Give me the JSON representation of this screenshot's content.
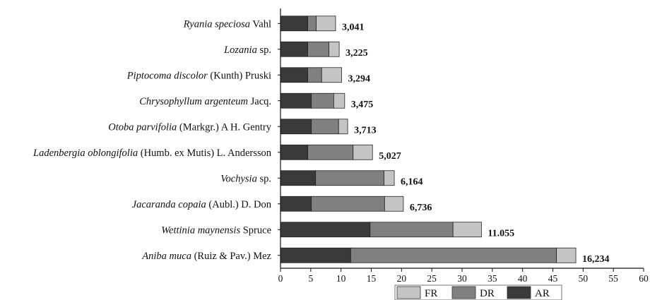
{
  "chart_data": {
    "type": "bar",
    "orientation": "horizontal",
    "stacked": true,
    "categories": [
      {
        "italic": "Ryania speciosa",
        "rest": " Vahl"
      },
      {
        "italic": "Lozania",
        "rest": " sp."
      },
      {
        "italic": "Piptocoma discolor",
        "rest": " (Kunth) Pruski"
      },
      {
        "italic": "Chrysophyllum argenteum",
        "rest": " Jacq."
      },
      {
        "italic": "Otoba parvifolia",
        "rest": " (Markgr.) A H. Gentry"
      },
      {
        "italic": "Ladenbergia oblongifolia",
        "rest": " (Humb. ex Mutis) L. Andersson"
      },
      {
        "italic": "Vochysia",
        "rest": " sp."
      },
      {
        "italic": "Jacaranda copaia",
        "rest": " (Aubl.) D. Don"
      },
      {
        "italic": "Wettinia maynensis",
        "rest": " Spruce"
      },
      {
        "italic": "Aniba muca",
        "rest": " (Ruiz & Pav.) Mez"
      }
    ],
    "series": [
      {
        "name": "AR",
        "color": "#3a3a3a",
        "values": [
          4.5,
          4.5,
          4.5,
          5.1,
          5.1,
          4.5,
          5.8,
          5.1,
          14.8,
          11.6
        ]
      },
      {
        "name": "DR",
        "color": "#808080",
        "values": [
          1.4,
          3.5,
          2.3,
          3.7,
          4.5,
          7.5,
          11.3,
          12.1,
          13.7,
          34.0
        ]
      },
      {
        "name": "FR",
        "color": "#c4c4c4",
        "values": [
          3.2,
          1.7,
          3.3,
          1.8,
          1.5,
          3.2,
          1.7,
          3.1,
          4.7,
          3.2
        ]
      }
    ],
    "data_labels": [
      "3,041",
      "3,225",
      "3,294",
      "3,475",
      "3,713",
      "5,027",
      "6,164",
      "6,736",
      "11.055",
      "16,234"
    ],
    "xlim": [
      0,
      60
    ],
    "xticks": [
      "0",
      "5",
      "10",
      "15",
      "20",
      "25",
      "30",
      "35",
      "40",
      "45",
      "50",
      "55",
      "60"
    ],
    "grid": false,
    "legend": {
      "position": "bottom",
      "entries": [
        "FR",
        "DR",
        "AR"
      ]
    }
  }
}
